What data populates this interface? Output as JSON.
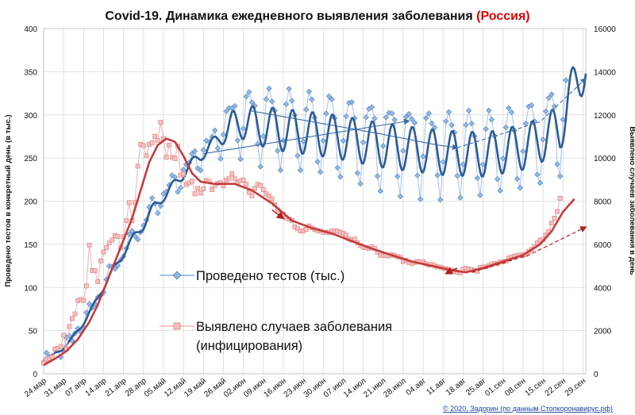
{
  "chart_data": {
    "type": "line",
    "title_main": "Covid-19. Динамика ежедневного выявления заболевания ",
    "title_highlight": "(Россия)",
    "ylabel_left": "Проведено тестов в конкретный день (в тыс.)",
    "ylabel_right": "Выявлено случаев заболевания в день",
    "ylim_left": [
      0,
      400
    ],
    "ylim_right": [
      0,
      16000
    ],
    "yticks_left": [
      "0",
      "50",
      "100",
      "150",
      "200",
      "250",
      "300",
      "350",
      "400"
    ],
    "yticks_right": [
      "0",
      "2000",
      "4000",
      "6000",
      "8000",
      "10000",
      "12000",
      "14000",
      "16000"
    ],
    "x_start": "24.мар",
    "x_end": "29.сен",
    "x_tick_labels": [
      "24.мар",
      "31.мар",
      "07.апр",
      "14.апр",
      "21.апр",
      "28.апр",
      "05.май",
      "12.май",
      "19.май",
      "26.май",
      "02.июн",
      "09.июн",
      "16.июн",
      "23.июн",
      "30.июн",
      "07.июл",
      "14.июл",
      "21.июл",
      "28.июл",
      "04.авг",
      "11.авг",
      "18.авг",
      "25.авг",
      "01.сен",
      "08.сен",
      "15.сен",
      "22.сен",
      "29.сен"
    ],
    "grid": true,
    "legend": [
      {
        "label": "Проведено тестов (тыс.)"
      },
      {
        "label_line1": "Выявлено случаев заболевания",
        "label_line2": "(инфицирования)"
      }
    ],
    "colors": {
      "tests_points": "#6f9fd4",
      "tests_line": "#a9c6e8",
      "tests_smooth": "#2b5b95",
      "cases_points": "#f2a0a0",
      "cases_line": "#f3b6b6",
      "cases_smooth": "#c43c3c",
      "grid": "#d9d9d9",
      "title_highlight": "#e00000"
    },
    "tests_smooth_knots": [
      [
        0,
        14
      ],
      [
        3,
        20
      ],
      [
        6,
        28
      ],
      [
        10,
        40
      ],
      [
        13,
        55
      ],
      [
        17,
        75
      ],
      [
        20,
        95
      ],
      [
        24,
        118
      ],
      [
        28,
        140
      ],
      [
        32,
        160
      ],
      [
        35,
        172
      ],
      [
        38,
        190
      ],
      [
        41,
        202
      ],
      [
        44,
        212
      ],
      [
        47,
        224
      ],
      [
        50,
        236
      ],
      [
        54,
        250
      ],
      [
        58,
        262
      ],
      [
        62,
        276
      ],
      [
        66,
        286
      ],
      [
        69,
        292
      ],
      [
        80,
        284
      ],
      [
        100,
        276
      ],
      [
        120,
        264
      ],
      [
        140,
        256
      ],
      [
        155,
        254
      ],
      [
        170,
        264
      ],
      [
        181,
        284
      ],
      [
        184,
        318
      ],
      [
        188,
        345
      ],
      [
        190,
        360
      ]
    ],
    "tests_trend_segments": [
      [
        [
          56,
          255
        ],
        [
          128,
          293
        ]
      ],
      [
        [
          72,
          305
        ],
        [
          118,
          278
        ],
        [
          138,
          265
        ],
        [
          145,
          262
        ]
      ]
    ],
    "tests_trend_dashed": [
      [
        145,
        262
      ],
      [
        174,
        292
      ],
      [
        190,
        342
      ]
    ],
    "cases_values": [
      [
        0,
        495
      ],
      [
        1,
        658
      ],
      [
        2,
        710
      ],
      [
        3,
        771
      ],
      [
        4,
        1154
      ],
      [
        5,
        1175
      ],
      [
        6,
        1267
      ],
      [
        7,
        1786
      ],
      [
        8,
        1154
      ],
      [
        9,
        2186
      ],
      [
        10,
        2558
      ],
      [
        11,
        2774
      ],
      [
        12,
        3388
      ],
      [
        13,
        3448
      ],
      [
        14,
        3388
      ],
      [
        15,
        4070
      ],
      [
        16,
        5966
      ],
      [
        17,
        4785
      ],
      [
        18,
        4774
      ],
      [
        19,
        4268
      ],
      [
        20,
        5236
      ],
      [
        21,
        5642
      ],
      [
        22,
        5849
      ],
      [
        23,
        6060
      ],
      [
        24,
        6198
      ],
      [
        25,
        6411
      ],
      [
        26,
        6361
      ],
      [
        27,
        5841
      ],
      [
        28,
        6361
      ],
      [
        29,
        7099
      ],
      [
        30,
        7933
      ],
      [
        31,
        7099
      ],
      [
        32,
        7933
      ],
      [
        33,
        9623
      ],
      [
        34,
        10633
      ],
      [
        35,
        10581
      ],
      [
        36,
        10102
      ],
      [
        37,
        10633
      ],
      [
        38,
        10699
      ],
      [
        39,
        11012
      ],
      [
        40,
        10817
      ],
      [
        41,
        11656
      ],
      [
        42,
        10899
      ],
      [
        43,
        10028
      ],
      [
        44,
        10598
      ],
      [
        45,
        10028
      ],
      [
        46,
        9974
      ],
      [
        47,
        10559
      ],
      [
        48,
        9200
      ],
      [
        49,
        9263
      ],
      [
        50,
        8764
      ],
      [
        51,
        8849
      ],
      [
        52,
        8926
      ],
      [
        53,
        8338
      ],
      [
        54,
        8599
      ],
      [
        55,
        8371
      ],
      [
        56,
        8572
      ],
      [
        57,
        8952
      ],
      [
        58,
        8915
      ],
      [
        59,
        8536
      ],
      [
        60,
        8726
      ],
      [
        61,
        8831
      ],
      [
        62,
        8855
      ],
      [
        63,
        8706
      ],
      [
        64,
        8985
      ],
      [
        65,
        9035
      ],
      [
        66,
        9268
      ],
      [
        67,
        9035
      ],
      [
        68,
        8863
      ],
      [
        69,
        8946
      ],
      [
        70,
        8985
      ],
      [
        71,
        8779
      ],
      [
        72,
        8404
      ],
      [
        73,
        8248
      ],
      [
        74,
        8595
      ],
      [
        75,
        8779
      ],
      [
        76,
        8726
      ],
      [
        77,
        8536
      ],
      [
        78,
        8338
      ],
      [
        79,
        8246
      ],
      [
        80,
        8110
      ],
      [
        81,
        7843
      ],
      [
        82,
        7600
      ],
      [
        83,
        7425
      ],
      [
        84,
        7400
      ],
      [
        85,
        7228
      ],
      [
        86,
        7176
      ],
      [
        87,
        7113
      ],
      [
        88,
        6800
      ],
      [
        89,
        6719
      ],
      [
        90,
        6615
      ],
      [
        91,
        6632
      ],
      [
        92,
        6693
      ],
      [
        93,
        6852
      ],
      [
        94,
        6760
      ],
      [
        95,
        6693
      ],
      [
        96,
        6632
      ],
      [
        97,
        6611
      ],
      [
        98,
        6556
      ],
      [
        99,
        6562
      ],
      [
        100,
        6537
      ],
      [
        101,
        6615
      ],
      [
        102,
        6632
      ],
      [
        103,
        6611
      ],
      [
        104,
        6562
      ],
      [
        105,
        6509
      ],
      [
        106,
        6428
      ],
      [
        107,
        6248
      ],
      [
        108,
        6185
      ],
      [
        109,
        6248
      ],
      [
        110,
        6060
      ],
      [
        111,
        5940
      ],
      [
        112,
        5862
      ],
      [
        113,
        5842
      ],
      [
        114,
        5811
      ],
      [
        115,
        5871
      ],
      [
        116,
        5811
      ],
      [
        117,
        5635
      ],
      [
        118,
        5488
      ],
      [
        119,
        5482
      ],
      [
        120,
        5475
      ],
      [
        121,
        5462
      ],
      [
        122,
        5509
      ],
      [
        123,
        5475
      ],
      [
        124,
        5427
      ],
      [
        125,
        5395
      ],
      [
        126,
        5204
      ],
      [
        127,
        5267
      ],
      [
        128,
        5159
      ],
      [
        129,
        5118
      ],
      [
        130,
        5159
      ],
      [
        131,
        5204
      ],
      [
        132,
        5176
      ],
      [
        133,
        5189
      ],
      [
        134,
        5102
      ],
      [
        135,
        5041
      ],
      [
        136,
        5065
      ],
      [
        137,
        5010
      ],
      [
        138,
        4952
      ],
      [
        139,
        4945
      ],
      [
        140,
        4892
      ],
      [
        141,
        4870
      ],
      [
        142,
        4828
      ],
      [
        143,
        4785
      ],
      [
        144,
        4748
      ],
      [
        145,
        4711
      ],
      [
        146,
        4676
      ],
      [
        147,
        4852
      ],
      [
        148,
        4892
      ],
      [
        149,
        4852
      ],
      [
        150,
        4828
      ],
      [
        151,
        4785
      ],
      [
        152,
        4748
      ],
      [
        153,
        4921
      ],
      [
        154,
        4945
      ],
      [
        155,
        4952
      ],
      [
        156,
        5010
      ],
      [
        157,
        5065
      ],
      [
        158,
        5110
      ],
      [
        159,
        5099
      ],
      [
        160,
        5185
      ],
      [
        161,
        5195
      ],
      [
        162,
        5218
      ],
      [
        163,
        5363
      ],
      [
        164,
        5413
      ],
      [
        165,
        5449
      ],
      [
        166,
        5488
      ],
      [
        167,
        5509
      ],
      [
        168,
        5488
      ],
      [
        169,
        5529
      ],
      [
        170,
        5670
      ],
      [
        171,
        5762
      ],
      [
        172,
        5905
      ],
      [
        173,
        6065
      ],
      [
        174,
        6196
      ],
      [
        175,
        6215
      ],
      [
        176,
        6431
      ],
      [
        177,
        6595
      ],
      [
        178,
        6986
      ],
      [
        179,
        7212
      ],
      [
        180,
        7523
      ],
      [
        181,
        8135
      ]
    ],
    "cases_smooth_knots": [
      [
        0,
        400
      ],
      [
        4,
        700
      ],
      [
        8,
        1050
      ],
      [
        12,
        1600
      ],
      [
        16,
        2400
      ],
      [
        19,
        3200
      ],
      [
        22,
        4200
      ],
      [
        25,
        5200
      ],
      [
        28,
        6200
      ],
      [
        31,
        7200
      ],
      [
        34,
        8500
      ],
      [
        37,
        9800
      ],
      [
        40,
        10600
      ],
      [
        43,
        10900
      ],
      [
        46,
        10750
      ],
      [
        49,
        10100
      ],
      [
        52,
        9300
      ],
      [
        55,
        8900
      ],
      [
        60,
        8800
      ],
      [
        67,
        8800
      ],
      [
        73,
        8500
      ],
      [
        80,
        7900
      ],
      [
        87,
        7100
      ],
      [
        94,
        6750
      ],
      [
        101,
        6500
      ],
      [
        108,
        6150
      ],
      [
        115,
        5800
      ],
      [
        122,
        5500
      ],
      [
        129,
        5200
      ],
      [
        136,
        5000
      ],
      [
        143,
        4800
      ],
      [
        148,
        4700
      ],
      [
        154,
        4900
      ],
      [
        161,
        5200
      ],
      [
        168,
        5500
      ],
      [
        174,
        6000
      ],
      [
        178,
        6600
      ],
      [
        182,
        7500
      ],
      [
        186,
        8100
      ]
    ],
    "cases_trend_segments": [
      [
        [
          80,
          7600
        ],
        [
          84,
          7200
        ]
      ],
      [
        [
          145,
          4900
        ],
        [
          141,
          4650
        ]
      ]
    ],
    "cases_trend_dashed": [
      [
        150,
        4700
      ],
      [
        170,
        5500
      ],
      [
        190,
        6800
      ]
    ]
  },
  "credit": "© 2020, Задорин (по данным Стопкоронавирус.рф)"
}
